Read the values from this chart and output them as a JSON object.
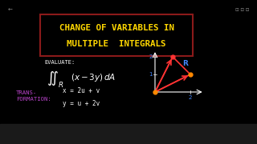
{
  "bg_color": "#000000",
  "title_box_color": "#8B1A1A",
  "title_line1": "CHANGE OF VARIABLES IN",
  "title_line2": "MULTIPLE  INTEGRALS",
  "title_color": "#FFD700",
  "title_fontsize": 7.8,
  "evaluate_text": "EVALUATE:",
  "evaluate_color": "#FFFFFF",
  "transform_label": "TRANS-\nFORMATION:",
  "transform_color": "#BB44CC",
  "eq1": "x = 2u + v",
  "eq2": "y = u + 2v",
  "eq_color": "#FFFFFF",
  "triangle_color": "#FF3333",
  "triangle_points": [
    [
      0,
      0
    ],
    [
      1,
      2
    ],
    [
      2,
      1
    ]
  ],
  "dot_origin_color": "#FF8800",
  "dot_top_color": "#FF3333",
  "dot_right_color": "#FF8800",
  "axis_label_color": "#4488FF",
  "R_label_color": "#4488FF",
  "ui_bar_color": "#222222",
  "nav_arrow_color": "#888888"
}
